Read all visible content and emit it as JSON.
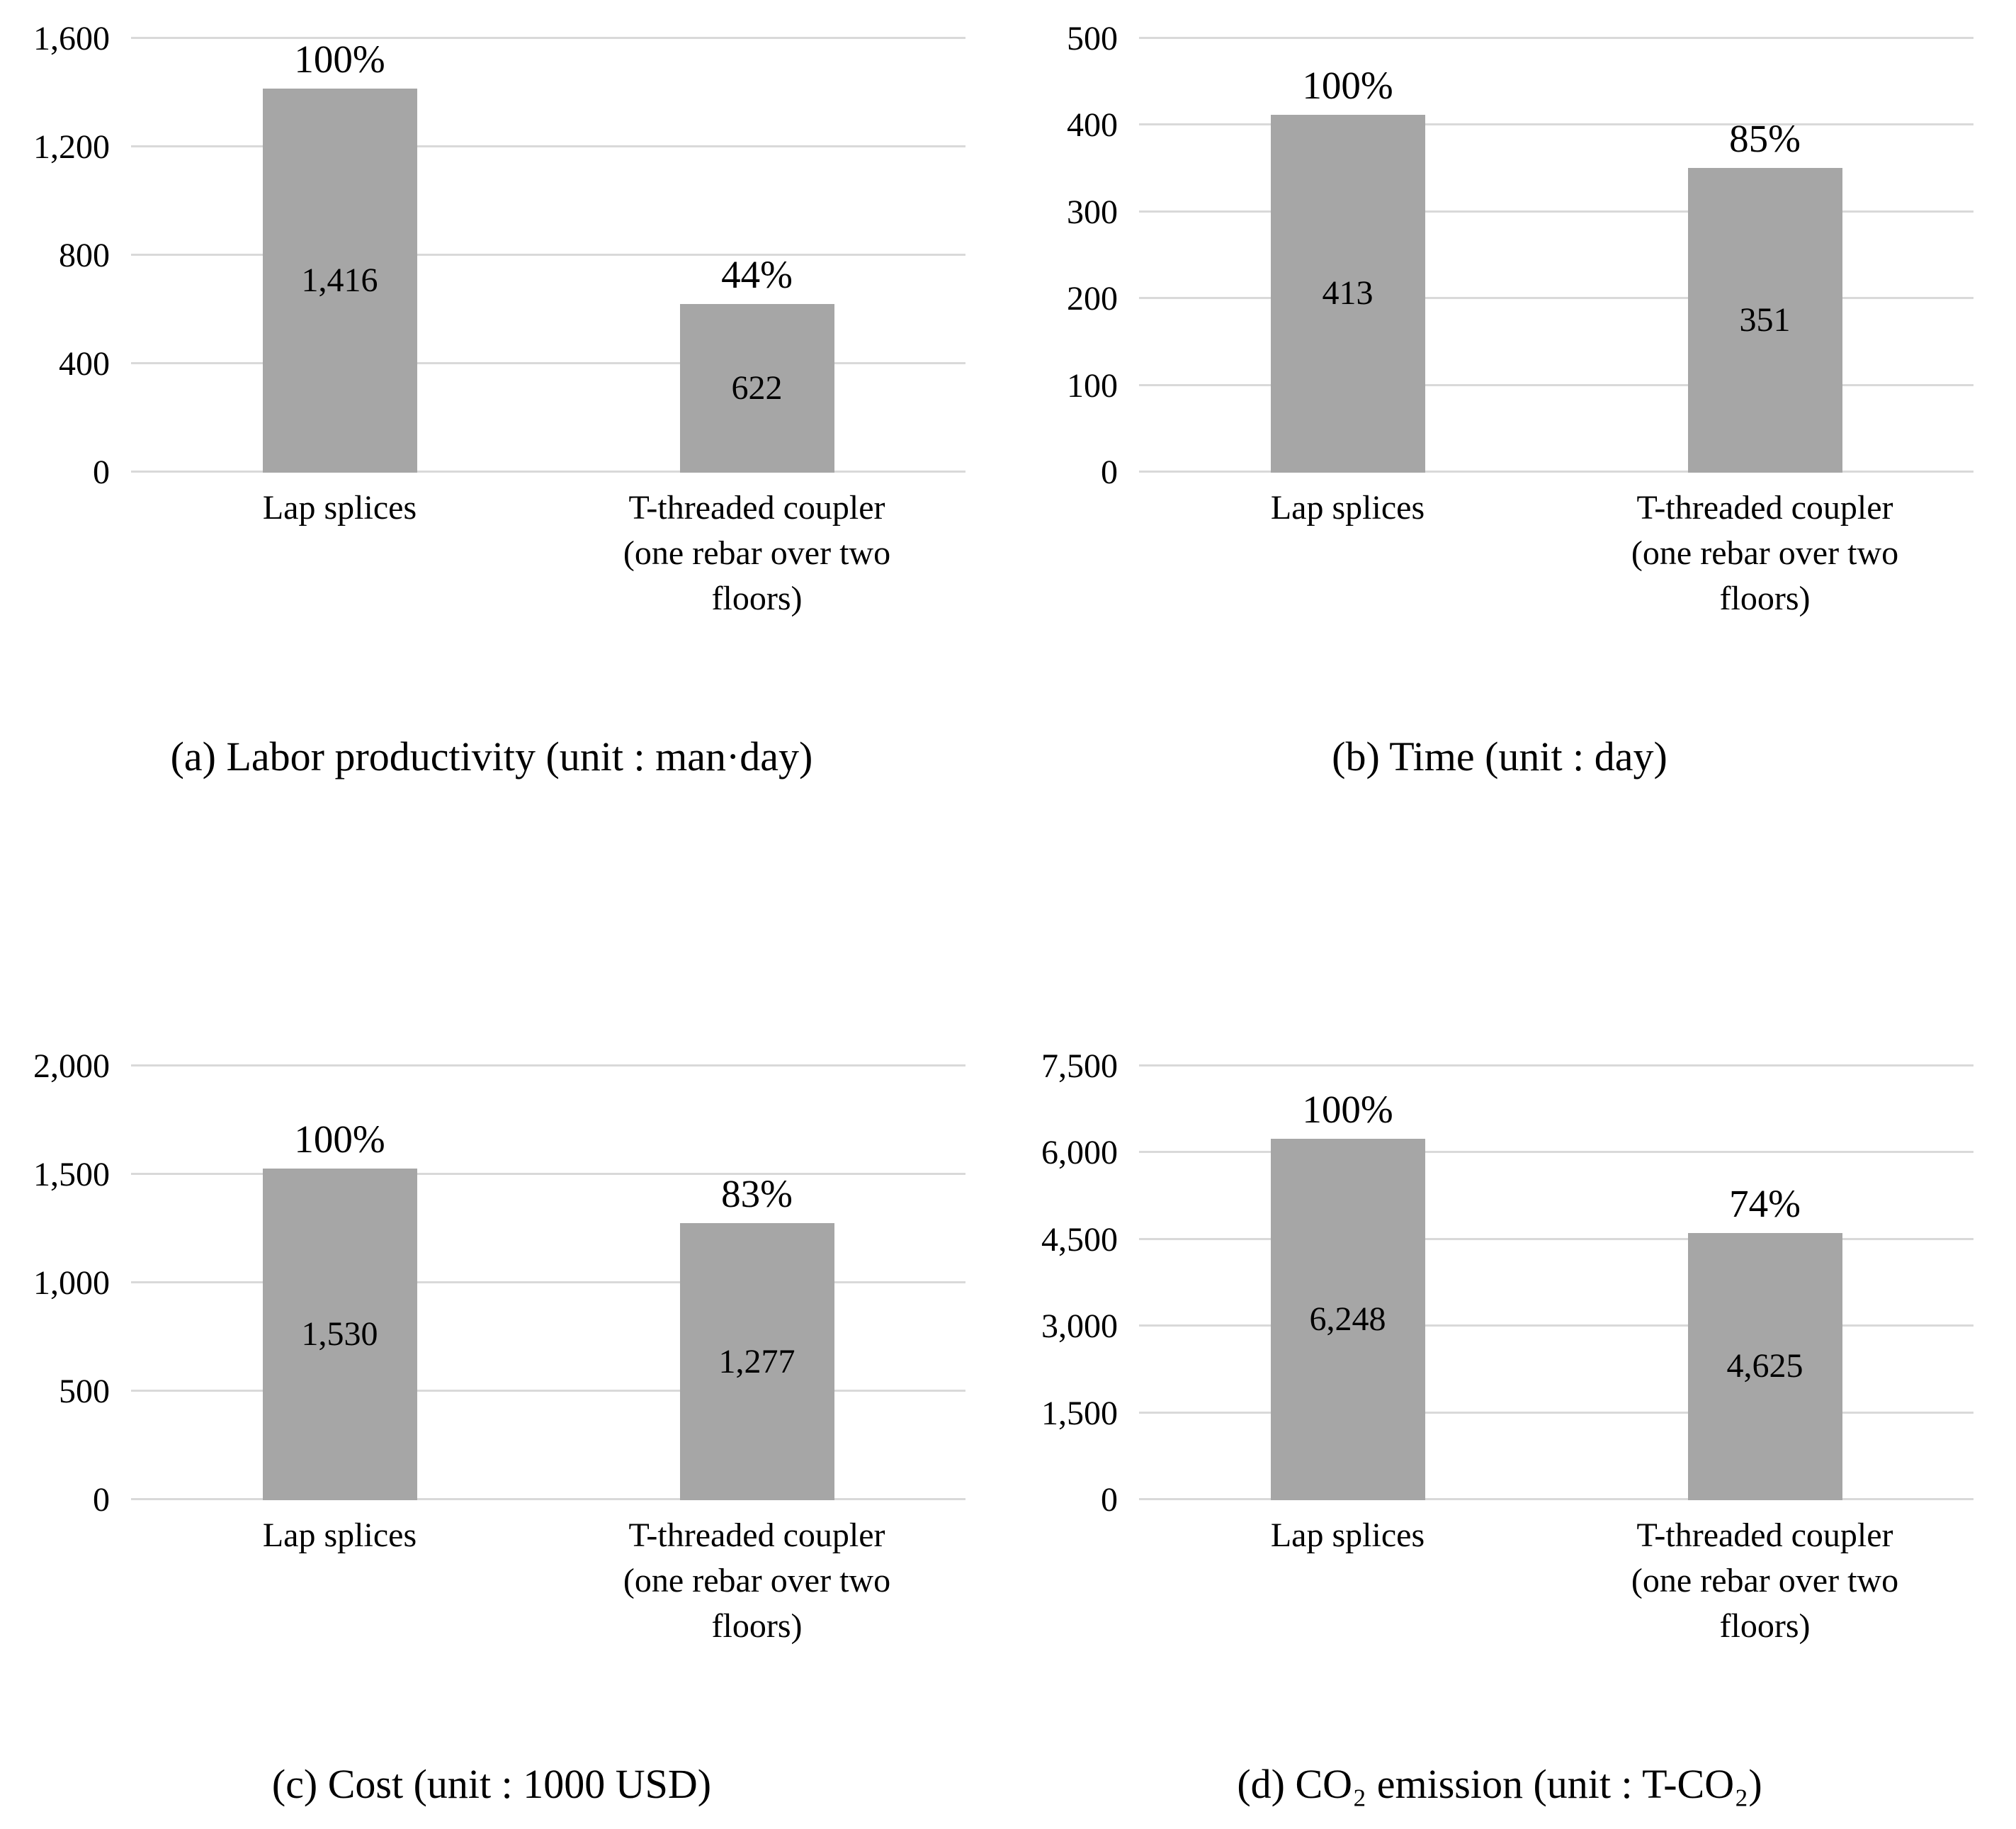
{
  "page": {
    "background": "#ffffff"
  },
  "colors": {
    "bar": "#a6a6a6",
    "gridline": "#d9d9d9",
    "text": "#000000"
  },
  "chart_data": [
    {
      "id": "a",
      "type": "bar",
      "caption": "(a) Labor productivity (unit : man·day)",
      "categories": [
        "Lap splices",
        "T-threaded coupler (one rebar over two floors)"
      ],
      "category_lines": [
        [
          "Lap splices"
        ],
        [
          "T-threaded coupler",
          "(one rebar over two",
          "floors)"
        ]
      ],
      "values": [
        1416,
        622
      ],
      "value_labels": [
        "1,416",
        "622"
      ],
      "percent_labels": [
        "100%",
        "44%"
      ],
      "ylim": [
        0,
        1600
      ],
      "ytick_step": 400,
      "yticks": [
        "0",
        "400",
        "800",
        "1,200",
        "1,600"
      ],
      "xlabel": "",
      "ylabel": "",
      "grid": true,
      "legend": "none"
    },
    {
      "id": "b",
      "type": "bar",
      "caption": "(b) Time (unit : day)",
      "categories": [
        "Lap splices",
        "T-threaded coupler (one rebar over two floors)"
      ],
      "category_lines": [
        [
          "Lap splices"
        ],
        [
          "T-threaded coupler",
          "(one rebar over two",
          "floors)"
        ]
      ],
      "values": [
        413,
        351
      ],
      "value_labels": [
        "413",
        "351"
      ],
      "percent_labels": [
        "100%",
        "85%"
      ],
      "ylim": [
        0,
        500
      ],
      "ytick_step": 100,
      "yticks": [
        "0",
        "100",
        "200",
        "300",
        "400",
        "500"
      ],
      "xlabel": "",
      "ylabel": "",
      "grid": true,
      "legend": "none"
    },
    {
      "id": "c",
      "type": "bar",
      "caption": "(c) Cost (unit : 1000 USD)",
      "categories": [
        "Lap splices",
        "T-threaded coupler (one rebar over two floors)"
      ],
      "category_lines": [
        [
          "Lap splices"
        ],
        [
          "T-threaded coupler",
          "(one rebar over two",
          "floors)"
        ]
      ],
      "values": [
        1530,
        1277
      ],
      "value_labels": [
        "1,530",
        "1,277"
      ],
      "percent_labels": [
        "100%",
        "83%"
      ],
      "ylim": [
        0,
        2000
      ],
      "ytick_step": 500,
      "yticks": [
        "0",
        "500",
        "1,000",
        "1,500",
        "2,000"
      ],
      "xlabel": "",
      "ylabel": "",
      "grid": true,
      "legend": "none"
    },
    {
      "id": "d",
      "type": "bar",
      "caption": "(d) CO₂ emission (unit : T-CO₂)",
      "categories": [
        "Lap splices",
        "T-threaded coupler (one rebar over two floors)"
      ],
      "category_lines": [
        [
          "Lap splices"
        ],
        [
          "T-threaded coupler",
          "(one rebar over two",
          "floors)"
        ]
      ],
      "values": [
        6248,
        4625
      ],
      "value_labels": [
        "6,248",
        "4,625"
      ],
      "percent_labels": [
        "100%",
        "74%"
      ],
      "ylim": [
        0,
        7500
      ],
      "ytick_step": 1500,
      "yticks": [
        "0",
        "1,500",
        "3,000",
        "4,500",
        "6,000",
        "7,500"
      ],
      "xlabel": "",
      "ylabel": "",
      "grid": true,
      "legend": "none"
    }
  ]
}
